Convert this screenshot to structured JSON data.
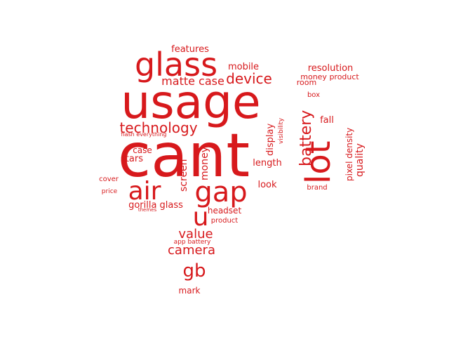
{
  "color": "#d7191c",
  "words": [
    {
      "text": "cant",
      "size": 86
    },
    {
      "text": "usage",
      "size": 66
    },
    {
      "text": "lot",
      "size": 48
    },
    {
      "text": "glass",
      "size": 46
    },
    {
      "text": "gap",
      "size": 40
    },
    {
      "text": "air",
      "size": 36
    },
    {
      "text": "u",
      "size": 36
    },
    {
      "text": "gb",
      "size": 26
    },
    {
      "text": "battery",
      "size": 22
    },
    {
      "text": "technology",
      "size": 20
    },
    {
      "text": "device",
      "size": 20
    },
    {
      "text": "value",
      "size": 18
    },
    {
      "text": "camera",
      "size": 18
    },
    {
      "text": "matte case",
      "size": 16
    },
    {
      "text": "money",
      "size": 14
    },
    {
      "text": "screen",
      "size": 14
    },
    {
      "text": "quality",
      "size": 14
    },
    {
      "text": "resolution",
      "size": 13
    },
    {
      "text": "mobile",
      "size": 13
    },
    {
      "text": "features",
      "size": 13
    },
    {
      "text": "stars",
      "size": 13
    },
    {
      "text": "gorilla glass",
      "size": 13
    },
    {
      "text": "look",
      "size": 13
    },
    {
      "text": "length",
      "size": 13
    },
    {
      "text": "display",
      "size": 13
    },
    {
      "text": "fall",
      "size": 13
    },
    {
      "text": "pixel density",
      "size": 12
    },
    {
      "text": "headset",
      "size": 12
    },
    {
      "text": "case",
      "size": 12
    },
    {
      "text": "money product",
      "size": 11
    },
    {
      "text": "room",
      "size": 11
    },
    {
      "text": "product",
      "size": 10
    },
    {
      "text": "mark",
      "size": 12
    },
    {
      "text": "cover",
      "size": 10
    },
    {
      "text": "brand",
      "size": 10
    },
    {
      "text": "box",
      "size": 10
    },
    {
      "text": "visibility",
      "size": 9
    },
    {
      "text": "price",
      "size": 9
    },
    {
      "text": "app battery",
      "size": 9
    },
    {
      "text": "flash everything",
      "size": 8
    },
    {
      "text": "themes",
      "size": 7
    }
  ]
}
